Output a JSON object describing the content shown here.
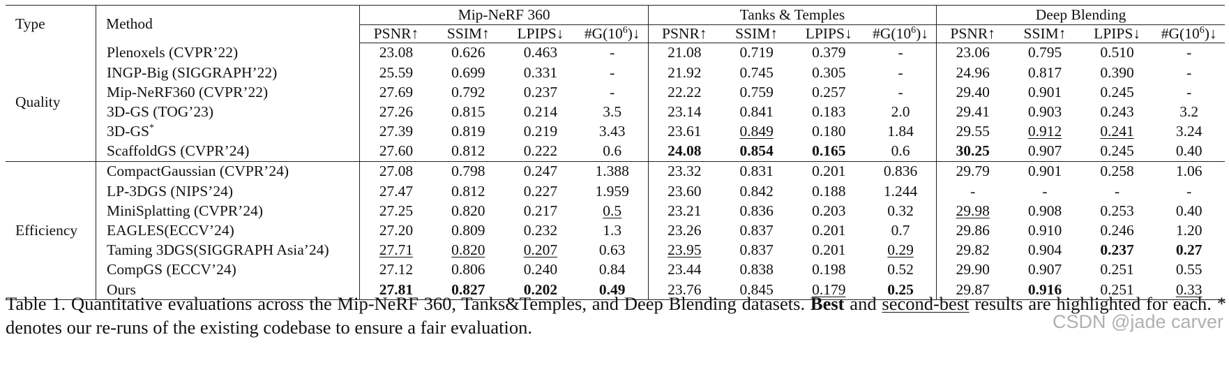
{
  "table": {
    "headers": {
      "type": "Type",
      "method": "Method",
      "datasets": [
        "Mip-NeRF 360",
        "Tanks & Temples",
        "Deep Blending"
      ],
      "metrics": [
        "PSNR↑",
        "SSIM↑",
        "LPIPS↓",
        "#G(10⁶)↓"
      ],
      "metric_gaussians_base": "#G(10",
      "metric_gaussians_exp": "6",
      "metric_gaussians_tail": ")↓"
    },
    "groups": [
      {
        "type": "Quality",
        "rows": [
          {
            "method": "Plenoxels (CVPR’22)",
            "cells": [
              "23.08",
              "0.626",
              "0.463",
              "-",
              "21.08",
              "0.719",
              "0.379",
              "-",
              "23.06",
              "0.795",
              "0.510",
              "-"
            ]
          },
          {
            "method": "INGP-Big (SIGGRAPH’22)",
            "cells": [
              "25.59",
              "0.699",
              "0.331",
              "-",
              "21.92",
              "0.745",
              "0.305",
              "-",
              "24.96",
              "0.817",
              "0.390",
              "-"
            ]
          },
          {
            "method": "Mip-NeRF360 (CVPR’22)",
            "cells": [
              "27.69",
              "0.792",
              "0.237",
              "-",
              "22.22",
              "0.759",
              "0.257",
              "-",
              "29.40",
              "0.901",
              "0.245",
              "-"
            ]
          },
          {
            "method": "3D-GS (TOG’23)",
            "cells": [
              "27.26",
              "0.815",
              "0.214",
              "3.5",
              "23.14",
              "0.841",
              "0.183",
              "2.0",
              "29.41",
              "0.903",
              "0.243",
              "3.2"
            ]
          },
          {
            "method": "3D-GS",
            "method_sup": "*",
            "cells": [
              "27.39",
              "0.819",
              "0.219",
              "3.43",
              "23.61",
              "0.849",
              "0.180",
              "1.84",
              "29.55",
              "0.912",
              "0.241",
              "3.24"
            ]
          },
          {
            "method": "ScaffoldGS (CVPR’24)",
            "cells": [
              "27.60",
              "0.812",
              "0.222",
              "0.6",
              "24.08",
              "0.854",
              "0.165",
              "0.6",
              "30.25",
              "0.907",
              "0.245",
              "0.40"
            ]
          }
        ]
      },
      {
        "type": "Efficiency",
        "rows": [
          {
            "method": "CompactGaussian (CVPR’24)",
            "cells": [
              "27.08",
              "0.798",
              "0.247",
              "1.388",
              "23.32",
              "0.831",
              "0.201",
              "0.836",
              "29.79",
              "0.901",
              "0.258",
              "1.06"
            ]
          },
          {
            "method": "LP-3DGS (NIPS’24)",
            "cells": [
              "27.47",
              "0.812",
              "0.227",
              "1.959",
              "23.60",
              "0.842",
              "0.188",
              "1.244",
              "-",
              "-",
              "-",
              "-"
            ]
          },
          {
            "method": "MiniSplatting (CVPR’24)",
            "cells": [
              "27.25",
              "0.820",
              "0.217",
              "0.5",
              "23.21",
              "0.836",
              "0.203",
              "0.32",
              "29.98",
              "0.908",
              "0.253",
              "0.40"
            ]
          },
          {
            "method": "EAGLES(ECCV’24)",
            "cells": [
              "27.20",
              "0.809",
              "0.232",
              "1.3",
              "23.26",
              "0.837",
              "0.201",
              "0.7",
              "29.86",
              "0.910",
              "0.246",
              "1.20"
            ]
          },
          {
            "method": "Taming 3DGS(SIGGRAPH Asia’24)",
            "cells": [
              "27.71",
              "0.820",
              "0.207",
              "0.63",
              "23.95",
              "0.837",
              "0.201",
              "0.29",
              "29.82",
              "0.904",
              "0.237",
              "0.27"
            ]
          },
          {
            "method": "CompGS (ECCV’24)",
            "cells": [
              "27.12",
              "0.806",
              "0.240",
              "0.84",
              "23.44",
              "0.838",
              "0.198",
              "0.52",
              "29.90",
              "0.907",
              "0.251",
              "0.55"
            ]
          },
          {
            "method": "Ours",
            "method_bold": true,
            "cells": [
              "27.81",
              "0.827",
              "0.202",
              "0.49",
              "23.76",
              "0.845",
              "0.179",
              "0.25",
              "29.87",
              "0.916",
              "0.251",
              "0.33"
            ]
          }
        ]
      }
    ],
    "bold_cells": {
      "ScaffoldGS (CVPR’24)": [
        4,
        5,
        6,
        8
      ],
      "Taming 3DGS(SIGGRAPH Asia’24)": [
        10,
        11
      ],
      "Ours": [
        0,
        1,
        2,
        3,
        7,
        9
      ]
    },
    "underlined_cells": {
      "3D-GS": [
        5,
        9,
        10
      ],
      "MiniSplatting (CVPR’24)": [
        3,
        8
      ],
      "Taming 3DGS(SIGGRAPH Asia’24)": [
        0,
        1,
        2,
        4,
        7
      ],
      "Ours": [
        6,
        11
      ]
    }
  },
  "caption": {
    "prefix": "Table 1.  Quantitative evaluations across the Mip-NeRF 360, Tanks&Temples, and Deep Blending datasets. ",
    "best": "Best",
    "middle": " and ",
    "second_best": "second-best",
    "suffix": " results are highlighted for each. * denotes our re-runs of the existing codebase to ensure a fair evaluation."
  },
  "watermark": "CSDN @jade carver"
}
